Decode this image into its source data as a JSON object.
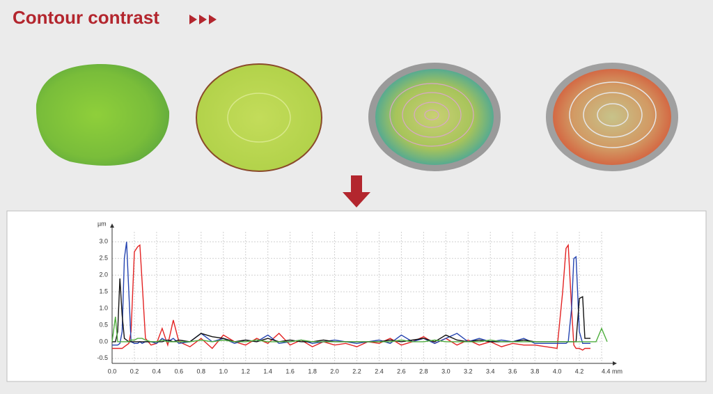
{
  "title": "Contour contrast",
  "chart_data": {
    "type": "line",
    "y_label": "µm",
    "x": [
      0,
      0.03,
      0.05,
      0.07,
      0.09,
      0.11,
      0.13,
      0.15,
      0.17,
      0.2,
      0.23,
      0.25,
      0.27,
      0.3,
      0.35,
      0.4,
      0.45,
      0.5,
      0.55,
      0.6,
      0.7,
      0.8,
      0.9,
      1.0,
      1.1,
      1.2,
      1.3,
      1.4,
      1.5,
      1.6,
      1.7,
      1.8,
      1.9,
      2.0,
      2.1,
      2.2,
      2.3,
      2.4,
      2.5,
      2.6,
      2.7,
      2.8,
      2.9,
      3.0,
      3.1,
      3.2,
      3.3,
      3.4,
      3.5,
      3.6,
      3.7,
      3.8,
      3.9,
      4.0,
      4.05,
      4.08,
      4.1,
      4.13,
      4.15,
      4.17,
      4.2,
      4.23,
      4.25,
      4.3,
      4.35,
      4.4,
      4.45
    ],
    "series": [
      {
        "color": "#e32222",
        "values": [
          -0.2,
          -0.2,
          -0.2,
          -0.2,
          -0.2,
          -0.15,
          -0.1,
          -0.05,
          0.3,
          2.7,
          2.85,
          2.9,
          1.8,
          0.1,
          -0.1,
          -0.05,
          0.4,
          -0.1,
          0.65,
          0,
          -0.15,
          0.1,
          -0.2,
          0.2,
          0,
          -0.1,
          0.1,
          -0.05,
          0.25,
          -0.1,
          0.05,
          -0.15,
          0,
          -0.1,
          -0.05,
          -0.15,
          0,
          -0.05,
          0.1,
          -0.1,
          0,
          0.15,
          -0.05,
          0.1,
          -0.1,
          0.05,
          -0.1,
          0,
          -0.15,
          -0.05,
          -0.1,
          -0.1,
          -0.15,
          -0.2,
          1.5,
          2.8,
          2.9,
          1.0,
          -0.1,
          -0.2,
          -0.2,
          -0.25,
          -0.2,
          -0.2,
          null,
          null,
          null
        ]
      },
      {
        "color": "#2443b0",
        "values": [
          -0.1,
          -0.1,
          -0.1,
          -0.05,
          0.3,
          2.5,
          3.0,
          1.5,
          0,
          -0.05,
          -0.05,
          0,
          -0.05,
          0,
          0,
          -0.05,
          0.1,
          0,
          0.1,
          -0.05,
          0,
          0.25,
          0,
          0.1,
          -0.05,
          0.05,
          0,
          0.2,
          -0.05,
          0,
          0.05,
          -0.05,
          0,
          0.05,
          0,
          -0.05,
          0,
          0.05,
          -0.05,
          0.2,
          0,
          0.1,
          -0.05,
          0.1,
          0.25,
          0,
          0.1,
          0,
          0.05,
          0,
          0.1,
          -0.05,
          -0.05,
          -0.05,
          -0.05,
          -0.05,
          0,
          1.0,
          2.5,
          2.55,
          0.3,
          -0.05,
          -0.05,
          -0.05,
          null,
          null,
          null
        ]
      },
      {
        "color": "#111111",
        "values": [
          0,
          0,
          0.3,
          1.9,
          0.8,
          0.1,
          0.05,
          0,
          0,
          0,
          0,
          0,
          0,
          0,
          0,
          0,
          0,
          0.05,
          0,
          0.05,
          0,
          0.25,
          0.15,
          0.1,
          0,
          0.05,
          0,
          0.1,
          0,
          0.05,
          0,
          0,
          0.05,
          0,
          0,
          0,
          0,
          0,
          0.05,
          0,
          0.05,
          0.1,
          0,
          0.2,
          0.05,
          0,
          0.05,
          0,
          0,
          0,
          0.05,
          0,
          0,
          0,
          0,
          0,
          0,
          0,
          0,
          0,
          1.3,
          1.35,
          0.1,
          0.1,
          null,
          null,
          null
        ]
      },
      {
        "color": "#4fae3e",
        "values": [
          0,
          0.75,
          0,
          0,
          0,
          0,
          0,
          0,
          0.05,
          0.05,
          0.1,
          0.1,
          0.1,
          0.05,
          0,
          0,
          0.05,
          0,
          0,
          0,
          0,
          0.05,
          0,
          0.05,
          0,
          0,
          0.05,
          0,
          0,
          0,
          0.05,
          0,
          0,
          0,
          0,
          0,
          0,
          0,
          0,
          0.05,
          0,
          0,
          0.05,
          0,
          0,
          0,
          0,
          0.05,
          0,
          0,
          0,
          0,
          0,
          0,
          0,
          0,
          0,
          0,
          0,
          0,
          0,
          0,
          0,
          0,
          0,
          0.4,
          0
        ]
      }
    ],
    "xlim": [
      0,
      4.45
    ],
    "ylim": [
      -0.65,
      3.3
    ],
    "xticks": [
      {
        "value": 0,
        "label": "0.0"
      },
      0.2,
      0.4,
      0.6,
      0.8,
      {
        "value": 1,
        "label": "1.0"
      },
      1.2,
      1.4,
      1.6,
      1.8,
      {
        "value": 2,
        "label": "2.0"
      },
      2.2,
      2.4,
      2.6,
      2.8,
      {
        "value": 3,
        "label": "3.0"
      },
      3.2,
      3.4,
      3.6,
      3.8,
      {
        "value": 4,
        "label": "4.0"
      },
      4.2,
      {
        "value": 4.4,
        "label": "4.4 mm"
      }
    ],
    "yticks": [
      -0.5,
      {
        "value": 0,
        "label": "0.0"
      },
      0.5,
      {
        "value": 1,
        "label": "1.0"
      },
      1.5,
      {
        "value": 2,
        "label": "2.0"
      },
      2.5,
      {
        "value": 3,
        "label": "3.0"
      }
    ],
    "grid": true
  }
}
